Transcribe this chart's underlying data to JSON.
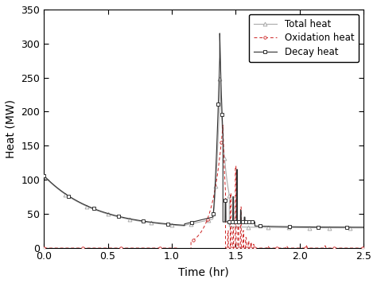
{
  "title": "",
  "xlabel": "Time (hr)",
  "ylabel": "Heat (MW)",
  "xlim": [
    0,
    2.5
  ],
  "ylim": [
    0,
    350
  ],
  "xticks": [
    0.0,
    0.5,
    1.0,
    1.5,
    2.0,
    2.5
  ],
  "yticks": [
    0,
    50,
    100,
    150,
    200,
    250,
    300,
    350
  ],
  "decay_color": "#303030",
  "oxidation_color": "#cc2020",
  "total_color": "#aaaaaa",
  "legend_labels": [
    "Decay heat",
    "Oxidation heat",
    "Total heat"
  ],
  "legend_loc": "upper right",
  "figsize": [
    4.74,
    3.56
  ],
  "dpi": 100
}
